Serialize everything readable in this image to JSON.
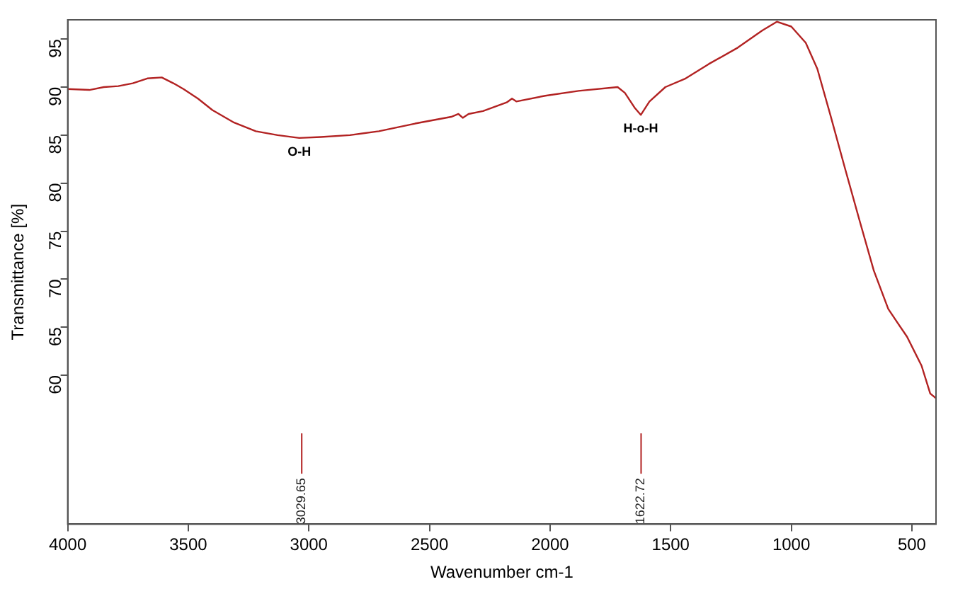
{
  "chart_data": {
    "type": "line",
    "xlabel": "Wavenumber cm-1",
    "ylabel": "Transmittance [%]",
    "x": [
      4000,
      3910,
      3850,
      3790,
      3730,
      3670,
      3610,
      3562,
      3520,
      3460,
      3400,
      3310,
      3220,
      3130,
      3040,
      2950,
      2830,
      2710,
      2560,
      2410,
      2380,
      2362,
      2338,
      2278,
      2180,
      2158,
      2140,
      2020,
      1882,
      1720,
      1690,
      1648,
      1624,
      1588,
      1522,
      1438,
      1342,
      1222,
      1120,
      1060,
      1000,
      940,
      892,
      838,
      778,
      718,
      658,
      598,
      520,
      460,
      424,
      400
    ],
    "series": [
      {
        "color": "#b22222",
        "values": [
          89.8,
          89.7,
          90,
          90.1,
          90.4,
          90.9,
          91,
          90.4,
          89.8,
          88.8,
          87.6,
          86.3,
          85.4,
          85,
          84.7,
          84.8,
          85,
          85.4,
          86.2,
          86.9,
          87.2,
          86.8,
          87.2,
          87.5,
          88.4,
          88.8,
          88.5,
          89.1,
          89.6,
          90,
          89.4,
          87.8,
          87.1,
          88.5,
          90,
          90.9,
          92.4,
          94.1,
          95.9,
          96.8,
          96.3,
          94.6,
          91.9,
          87.1,
          81.6,
          76.2,
          70.9,
          66.9,
          64,
          61,
          58.1,
          57.6
        ]
      }
    ],
    "xlim": [
      4000,
      400
    ],
    "xticks": [
      4000,
      3500,
      3000,
      2500,
      2000,
      1500,
      1000,
      500
    ],
    "ylim": [
      44.5,
      97
    ],
    "yticks": [
      60,
      65,
      70,
      75,
      80,
      85,
      90,
      95
    ],
    "grid": false,
    "legend": false,
    "marker": "none",
    "line_style": "solid",
    "annotations": [
      {
        "text": "O-H",
        "x": 3040,
        "y": 84.7
      },
      {
        "text": "H-o-H",
        "x": 1624,
        "y": 87.1
      },
      {
        "text": "3029.65",
        "x": 3029.65
      },
      {
        "text": "1622.72",
        "x": 1622.72
      }
    ]
  }
}
